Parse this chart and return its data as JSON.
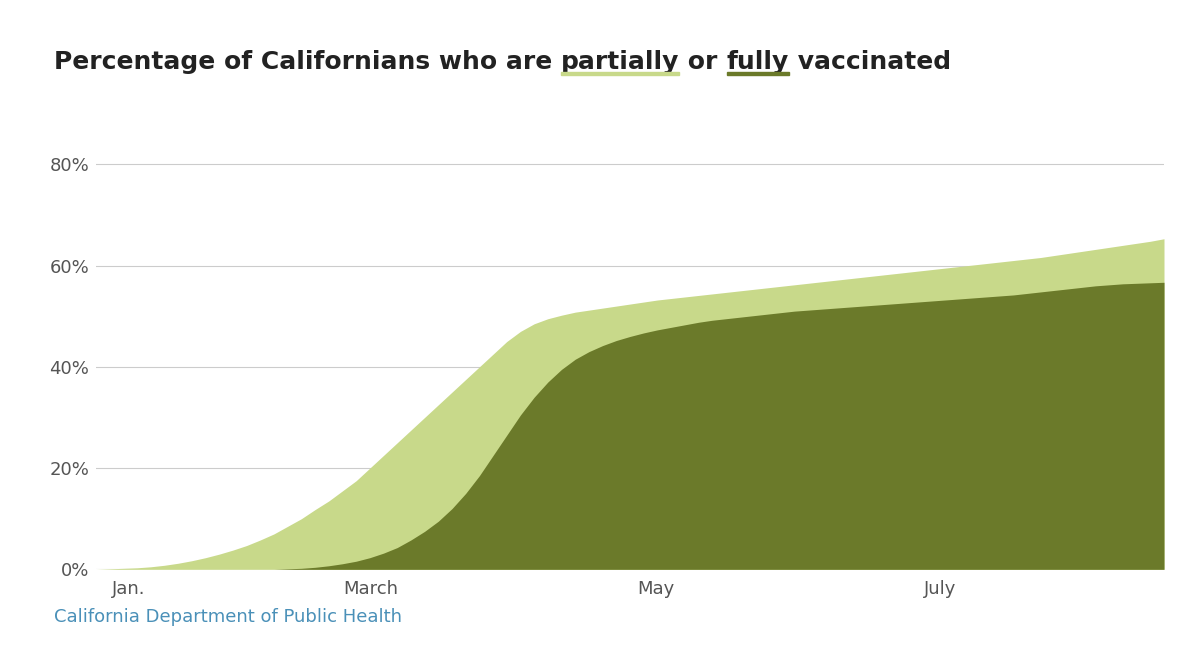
{
  "partially_color": "#c8d98a",
  "fully_color": "#6b7a2a",
  "background_color": "#ffffff",
  "grid_color": "#cccccc",
  "tick_label_color": "#555555",
  "source_text": "California Department of Public Health",
  "source_color": "#4a90b8",
  "yticks": [
    0,
    20,
    40,
    60,
    80
  ],
  "ylim": [
    0,
    85
  ],
  "xtick_labels": [
    "Jan.",
    "March",
    "May",
    "July"
  ],
  "partially_data": [
    0.0,
    0.1,
    0.2,
    0.3,
    0.5,
    0.8,
    1.2,
    1.7,
    2.3,
    3.0,
    3.8,
    4.7,
    5.8,
    7.0,
    8.5,
    10.0,
    11.8,
    13.5,
    15.5,
    17.5,
    20.0,
    22.5,
    25.0,
    27.5,
    30.0,
    32.5,
    35.0,
    37.5,
    40.0,
    42.5,
    45.0,
    47.0,
    48.5,
    49.5,
    50.2,
    50.8,
    51.2,
    51.6,
    52.0,
    52.4,
    52.8,
    53.2,
    53.5,
    53.8,
    54.1,
    54.4,
    54.7,
    55.0,
    55.3,
    55.6,
    55.9,
    56.2,
    56.5,
    56.8,
    57.1,
    57.4,
    57.7,
    58.0,
    58.3,
    58.6,
    58.9,
    59.2,
    59.5,
    59.8,
    60.1,
    60.4,
    60.7,
    61.0,
    61.3,
    61.6,
    62.0,
    62.4,
    62.8,
    63.2,
    63.6,
    64.0,
    64.4,
    64.8,
    65.3
  ],
  "fully_data": [
    0.0,
    0.0,
    0.0,
    0.0,
    0.0,
    0.0,
    0.0,
    0.0,
    0.0,
    0.0,
    0.0,
    0.0,
    0.0,
    0.0,
    0.1,
    0.2,
    0.4,
    0.7,
    1.1,
    1.6,
    2.3,
    3.2,
    4.3,
    5.8,
    7.5,
    9.5,
    12.0,
    15.0,
    18.5,
    22.5,
    26.5,
    30.5,
    34.0,
    37.0,
    39.5,
    41.5,
    43.0,
    44.2,
    45.2,
    46.0,
    46.7,
    47.3,
    47.8,
    48.3,
    48.8,
    49.2,
    49.5,
    49.8,
    50.1,
    50.4,
    50.7,
    51.0,
    51.2,
    51.4,
    51.6,
    51.8,
    52.0,
    52.2,
    52.4,
    52.6,
    52.8,
    53.0,
    53.2,
    53.4,
    53.6,
    53.8,
    54.0,
    54.2,
    54.5,
    54.8,
    55.1,
    55.4,
    55.7,
    56.0,
    56.2,
    56.4,
    56.5,
    56.6,
    56.7
  ]
}
